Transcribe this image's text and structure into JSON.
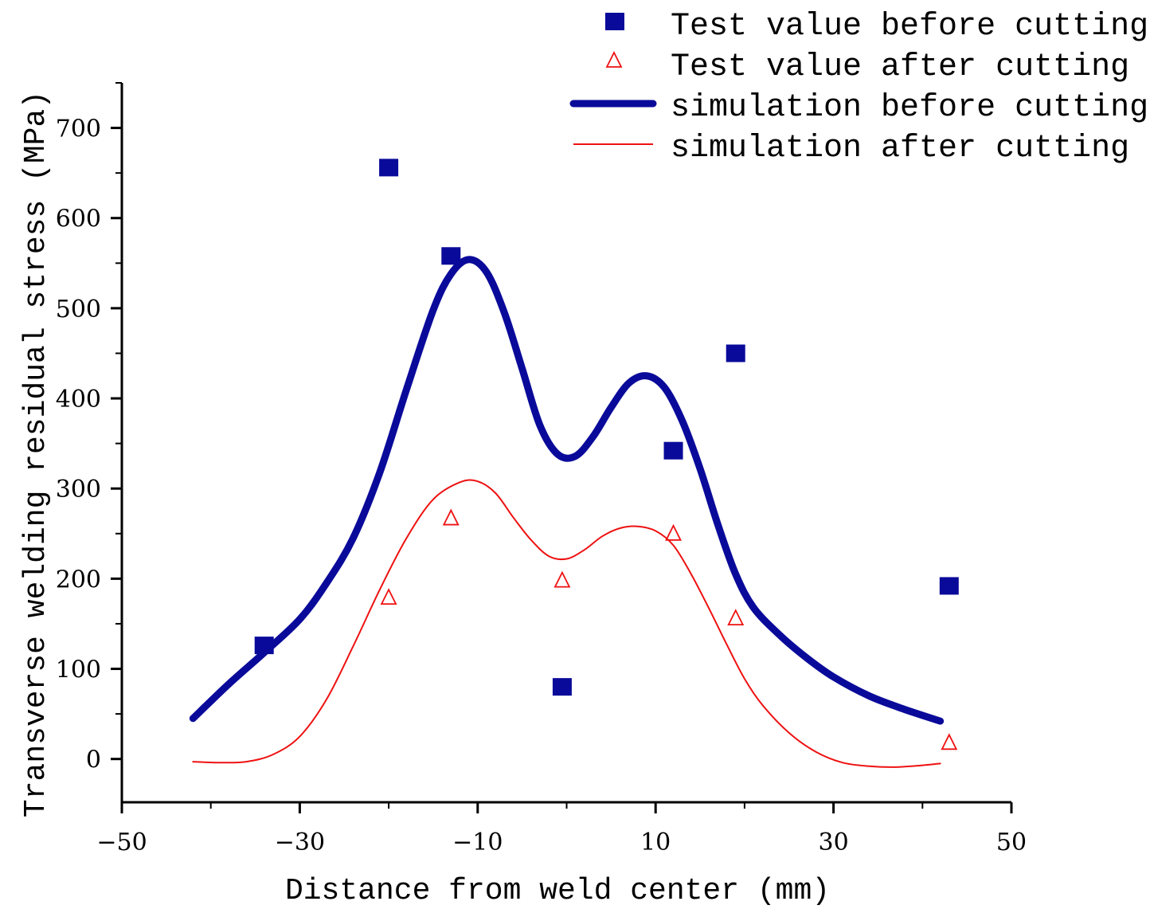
{
  "chart_data": {
    "type": "scatter",
    "xlabel": "Distance from weld center (mm)",
    "ylabel": "Transverse welding residual stress (MPa)",
    "xlim": [
      -50,
      50
    ],
    "ylim": [
      -48,
      750
    ],
    "x_ticks": [
      -50,
      -30,
      -10,
      10,
      30,
      50
    ],
    "x_tick_labels": [
      "−50",
      "−30",
      "−10",
      "10",
      "30",
      "50"
    ],
    "y_ticks": [
      0,
      100,
      200,
      300,
      400,
      500,
      600,
      700
    ],
    "y_tick_labels": [
      "0",
      "100",
      "200",
      "300",
      "400",
      "500",
      "600",
      "700"
    ],
    "grid": false,
    "legend_position": "top-right",
    "colors": {
      "before": "#0a0a9a",
      "after": "#ee1111"
    },
    "series": [
      {
        "name": "Test value before cutting",
        "kind": "markers-square",
        "x": [
          -34,
          -20,
          -13,
          -0.5,
          12,
          19,
          43
        ],
        "y": [
          126,
          656,
          558,
          80,
          342,
          450,
          192
        ]
      },
      {
        "name": "Test value after cutting",
        "kind": "markers-triangle",
        "x": [
          -20,
          -13,
          -0.5,
          12,
          19,
          43
        ],
        "y": [
          179,
          267,
          198,
          250,
          156,
          18
        ]
      },
      {
        "name": "simulation before cutting",
        "kind": "line-thick",
        "x": [
          -42,
          -38,
          -34,
          -30,
          -27,
          -24,
          -21,
          -18,
          -15,
          -13,
          -11,
          -9,
          -7,
          -5,
          -3,
          -1,
          1,
          3,
          5,
          7,
          9,
          11,
          13,
          15,
          17,
          19,
          21,
          24,
          27,
          30,
          34,
          38,
          42
        ],
        "y": [
          45,
          83,
          118,
          155,
          195,
          245,
          318,
          410,
          498,
          538,
          554,
          540,
          495,
          433,
          370,
          338,
          336,
          358,
          390,
          417,
          425,
          412,
          375,
          322,
          260,
          205,
          168,
          137,
          112,
          91,
          70,
          55,
          42
        ]
      },
      {
        "name": "simulation after cutting",
        "kind": "line-thin",
        "x": [
          -42,
          -39,
          -36,
          -33,
          -30,
          -27,
          -24,
          -21,
          -18,
          -15,
          -12,
          -10,
          -8,
          -6,
          -4,
          -2,
          0,
          2,
          4,
          6,
          8,
          10,
          12,
          14,
          16,
          18,
          20,
          22,
          25,
          28,
          31,
          34,
          37,
          40,
          42
        ],
        "y": [
          -3,
          -4,
          -3,
          5,
          25,
          66,
          125,
          188,
          245,
          288,
          307,
          308,
          295,
          268,
          243,
          225,
          222,
          232,
          247,
          256,
          258,
          253,
          237,
          205,
          167,
          127,
          89,
          60,
          29,
          8,
          -4,
          -8,
          -9,
          -7,
          -5
        ]
      }
    ]
  }
}
